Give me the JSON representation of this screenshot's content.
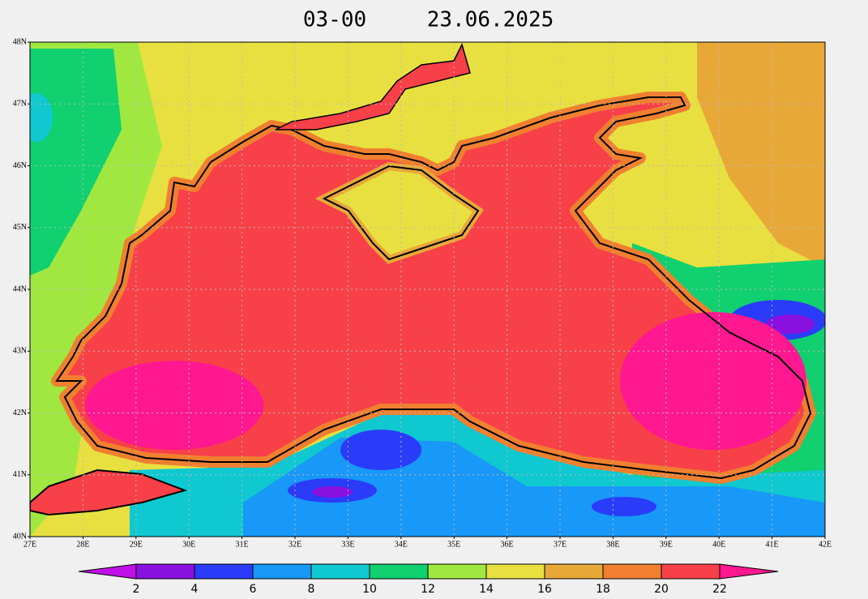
{
  "title": {
    "time": "03-00",
    "date": "23.06.2025"
  },
  "axes": {
    "latitudes": [
      "48N",
      "47N",
      "46N",
      "45N",
      "44N",
      "43N",
      "42N",
      "41N",
      "40N"
    ],
    "longitudes": [
      "27E",
      "28E",
      "29E",
      "30E",
      "31E",
      "32E",
      "33E",
      "34E",
      "35E",
      "36E",
      "37E",
      "38E",
      "39E",
      "40E",
      "41E",
      "42E"
    ]
  },
  "colorbar": {
    "ticks": [
      2,
      4,
      6,
      8,
      10,
      12,
      14,
      16,
      18,
      20,
      22
    ],
    "colors": [
      "#c010e8",
      "#8a10e0",
      "#2a3cf8",
      "#1898f8",
      "#10c8d0",
      "#10d070",
      "#a0e840",
      "#e8e040",
      "#e8a838",
      "#f08030",
      "#f84048",
      "#ff1890"
    ]
  }
}
